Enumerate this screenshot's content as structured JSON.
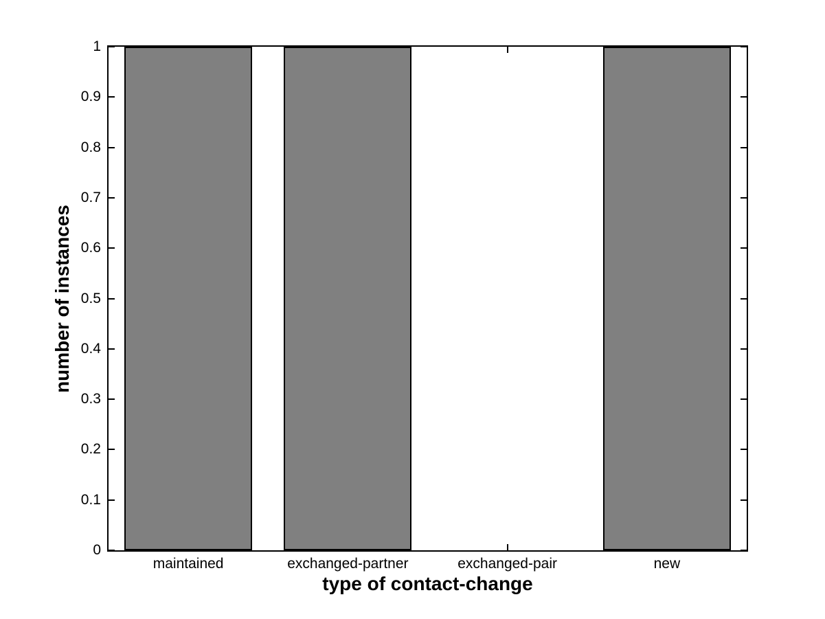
{
  "chart_data": {
    "type": "bar",
    "title": "",
    "categories": [
      "maintained",
      "exchanged-partner",
      "exchanged-pair",
      "new"
    ],
    "values": [
      1,
      1,
      0,
      1
    ],
    "xlabel": "type of contact-change",
    "ylabel": "number of instances",
    "ylim": [
      0,
      1
    ],
    "yticks": [
      {
        "value": 0,
        "label": "0"
      },
      {
        "value": 0.1,
        "label": "0.1"
      },
      {
        "value": 0.2,
        "label": "0.2"
      },
      {
        "value": 0.3,
        "label": "0.3"
      },
      {
        "value": 0.4,
        "label": "0.4"
      },
      {
        "value": 0.5,
        "label": "0.5"
      },
      {
        "value": 0.6,
        "label": "0.6"
      },
      {
        "value": 0.7,
        "label": "0.7"
      },
      {
        "value": 0.8,
        "label": "0.8"
      },
      {
        "value": 0.9,
        "label": "0.9"
      },
      {
        "value": 1,
        "label": "1"
      }
    ],
    "bar_relative_width": 0.8,
    "bar_color": "#808080",
    "bar_edge_color": "#000000",
    "axis_color": "#000000",
    "background_color": "#ffffff",
    "grid": false,
    "legend": "none",
    "tick_direction": "in",
    "box": true
  }
}
